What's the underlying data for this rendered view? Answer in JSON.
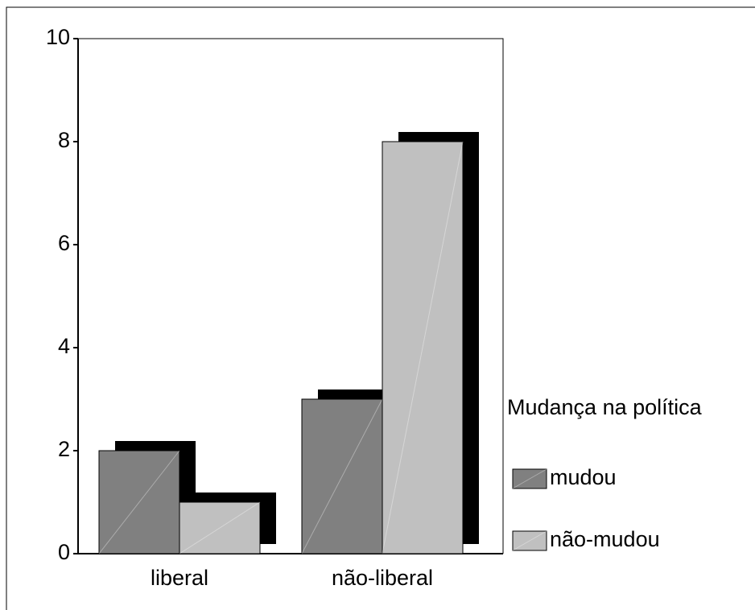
{
  "chart_data": {
    "type": "bar",
    "categories": [
      "liberal",
      "não-liberal"
    ],
    "series": [
      {
        "name": "mudou",
        "color": "#808080",
        "values": [
          2,
          3
        ]
      },
      {
        "name": "não-mudou",
        "color": "#c0c0c0",
        "values": [
          1,
          8
        ]
      }
    ],
    "legend_title": "Mudança na política",
    "ylim": [
      0,
      10
    ],
    "yticks": [
      0,
      2,
      4,
      6,
      8,
      10
    ],
    "grid": false,
    "legend": "right"
  }
}
